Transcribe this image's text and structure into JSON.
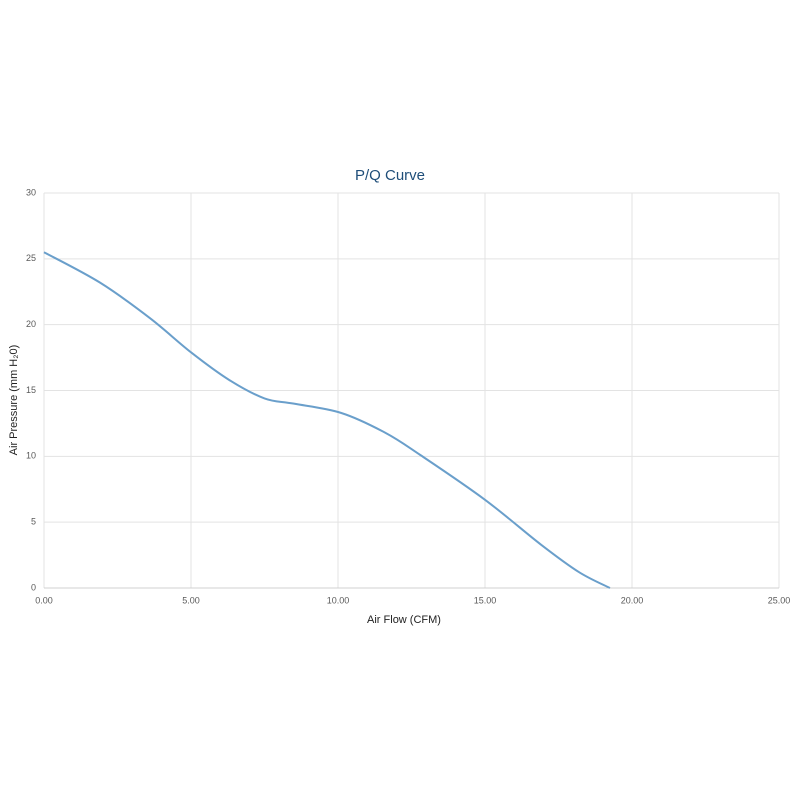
{
  "chart_data": {
    "type": "line",
    "title": "P/Q Curve",
    "x_label": "Air Flow (CFM)",
    "y_label": "Air Pressure (mm H₂0)",
    "x": [
      0,
      1.9,
      3.6,
      5.0,
      6.3,
      7.5,
      8.5,
      10.1,
      11.6,
      12.8,
      15.0,
      16.9,
      18.2,
      19.25
    ],
    "series": [
      {
        "name": "P/Q",
        "color": "#6a9fcb",
        "values": [
          25.5,
          23.2,
          20.5,
          17.9,
          15.8,
          14.4,
          14.0,
          13.3,
          11.8,
          10.1,
          6.7,
          3.3,
          1.2,
          0
        ]
      }
    ],
    "xlim": [
      0,
      25
    ],
    "xticks": [
      {
        "value": 0,
        "label": "0.00"
      },
      {
        "value": 5,
        "label": "5.00"
      },
      {
        "value": 10,
        "label": "10.00"
      },
      {
        "value": 15,
        "label": "15.00"
      },
      {
        "value": 20,
        "label": "20.00"
      },
      {
        "value": 25,
        "label": "25.00"
      }
    ],
    "ylim": [
      0,
      30
    ],
    "yticks": [
      0,
      5,
      10,
      15,
      20,
      25,
      30
    ],
    "grid": true
  }
}
